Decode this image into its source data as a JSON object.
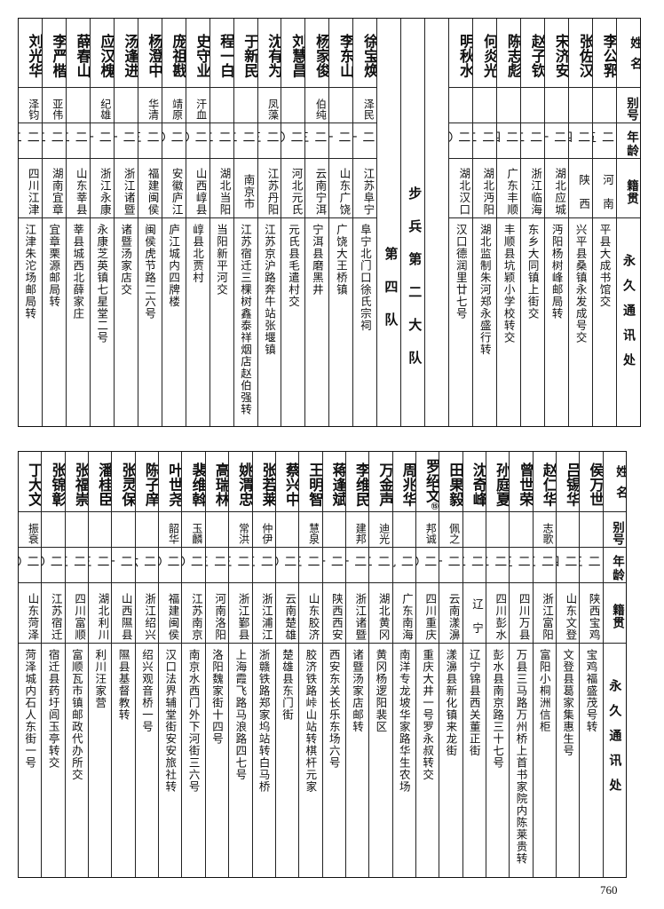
{
  "header": {
    "name": "姓名",
    "alias": "别号",
    "age": "年龄",
    "origin": "籍贯",
    "address": "永久通讯处"
  },
  "top_before": [
    {
      "name": "李公郛",
      "alias": "",
      "age": "二五",
      "origin": "河　南",
      "address": "平县大成书馆交"
    },
    {
      "name": "张佐汉",
      "alias": "",
      "age": "二四",
      "origin": "陕　西",
      "address": "兴平县桑镇永发成号交"
    },
    {
      "name": "宋济安",
      "alias": "",
      "age": "二一",
      "origin": "湖北应城",
      "address": "沔阳杨树峰邮局转"
    },
    {
      "name": "赵子钦",
      "alias": "",
      "age": "二二",
      "origin": "浙江临海",
      "address": "东乡大同镇上街交"
    },
    {
      "name": "陈志彪",
      "alias": "",
      "age": "二四",
      "origin": "广东丰顺",
      "address": "丰顺县坑颖小学校转交"
    },
    {
      "name": "何炎光",
      "alias": "",
      "age": "二二",
      "origin": "湖北沔阳",
      "address": "湖北监制朱河郑永盛行转"
    },
    {
      "name": "明秋水",
      "alias": "",
      "age": "二〇",
      "origin": "湖北汉口",
      "address": "汉口德润里廿七号"
    }
  ],
  "section": {
    "battalion": "步兵第二大队",
    "company": "第四队"
  },
  "top_after": [
    {
      "name": "徐宝焕",
      "alias": "泽民",
      "age": "二一",
      "origin": "江苏阜宁",
      "address": "阜宁北门口徐氏宗祠"
    },
    {
      "name": "李东山",
      "alias": "",
      "age": "二一",
      "origin": "山东广饶",
      "address": "广饶大王桥镇"
    },
    {
      "name": "杨家俊",
      "alias": "伯纯",
      "age": "二三",
      "origin": "云南宁洱",
      "address": "宁洱县磨黑井"
    },
    {
      "name": "刘慧昌",
      "alias": "",
      "age": "二〇",
      "origin": "河北元氏",
      "address": "元氏县毛遣村交"
    },
    {
      "name": "沈有为",
      "alias": "凤藻",
      "age": "二三",
      "origin": "江苏丹阳",
      "address": "江苏京沪路奔牛站张堰镇"
    },
    {
      "name": "于新民",
      "alias": "",
      "age": "二二",
      "origin": "南京市",
      "address": "江苏宿迁三棵树鑫泰祥烟店赵伯强转"
    },
    {
      "name": "程一白",
      "alias": "",
      "age": "二二",
      "origin": "湖北当阳",
      "address": "当阳新平河交"
    },
    {
      "name": "史守业",
      "alias": "汗血",
      "age": "二〇",
      "origin": "山西崞县",
      "address": "崞县北贾村"
    },
    {
      "name": "庞祖戡",
      "alias": "靖原",
      "age": "二〇",
      "origin": "安徽庐江",
      "address": "庐江城内四牌楼"
    },
    {
      "name": "杨澄中",
      "alias": "华清",
      "age": "二三",
      "origin": "福建闽侯",
      "address": "闽侯虎节路二六号"
    },
    {
      "name": "汤逢进",
      "alias": "",
      "age": "二一",
      "origin": "浙江诸暨",
      "address": "诸暨汤家店交"
    },
    {
      "name": "应汉槐",
      "alias": "纪雄",
      "age": "二一",
      "origin": "浙江永康",
      "address": "永康芝英镇七星堂二号"
    },
    {
      "name": "薛春山",
      "alias": "",
      "age": "二二",
      "origin": "山东莘县",
      "address": "莘县城西北薛家庄"
    },
    {
      "name": "李严楷",
      "alias": "亚伟",
      "age": "二二",
      "origin": "湖南宜章",
      "address": "宜章栗源邮局转"
    },
    {
      "name": "刘光华",
      "alias": "泽钧",
      "age": "二二",
      "origin": "四川江津",
      "address": "江津朱沱场邮局转"
    }
  ],
  "bottom": [
    {
      "name": "侯万世",
      "alias": "",
      "age": "二三",
      "origin": "陕西宝鸡",
      "address": "宝鸡福盛茂号转"
    },
    {
      "name": "吕锡华",
      "alias": "",
      "age": "二四",
      "origin": "山东文登",
      "address": "文登县葛家集惠生号"
    },
    {
      "name": "赵仁华",
      "alias": "志歌",
      "age": "二三",
      "origin": "浙江富阳",
      "address": "富阳小桐洲信柜"
    },
    {
      "name": "曾世荣",
      "alias": "",
      "age": "二五",
      "origin": "四川万县",
      "address": "万县三马路万州桥上首书家院内陈莱贵转"
    },
    {
      "name": "孙庭夏",
      "alias": "",
      "age": "二二",
      "origin": "四川彭水",
      "address": "彭水县南京路三十七号"
    },
    {
      "name": "沈奇峰",
      "alias": "",
      "age": "二二",
      "origin": "辽　宁",
      "address": "辽宁锦县西关董正街"
    },
    {
      "name": "田果毅",
      "alias": "佩之",
      "age": "二一",
      "origin": "云南漾濞",
      "address": "漾濞县新化镇来龙街"
    },
    {
      "name": "罗绍文",
      "note": "⑮",
      "alias": "邦诚",
      "age": "二〇",
      "origin": "四川重庆",
      "address": "重庆大井一号罗永叔转交"
    },
    {
      "name": "周兆华",
      "alias": "",
      "age": "二九",
      "origin": "广东南海",
      "address": "南洋专龙坡华家路华生农场"
    },
    {
      "name": "万金声",
      "alias": "迪光",
      "age": "二二",
      "origin": "湖北黄冈",
      "address": "黄冈杨逻阳裴区"
    },
    {
      "name": "李维民",
      "alias": "建邦",
      "age": "二一",
      "origin": "浙江诸暨",
      "address": "诸暨汤家店邮转"
    },
    {
      "name": "蒋逢斌",
      "alias": "",
      "age": "二一",
      "origin": "陕西西安",
      "address": "西安东关长乐东场六号"
    },
    {
      "name": "王明智",
      "alias": "慧泉",
      "age": "二三",
      "origin": "山东胶济",
      "address": "胶济铁路峠山站转棋杆元家"
    },
    {
      "name": "蔡兴中",
      "alias": "",
      "age": "二〇",
      "origin": "云南楚雄",
      "address": "楚雄县东门街"
    },
    {
      "name": "张若莱",
      "alias": "仲伊",
      "age": "二三",
      "origin": "浙江浦江",
      "address": "浙赣铁路郑家坞站转白马桥"
    },
    {
      "name": "姚渭忠",
      "alias": "常洪",
      "age": "二三",
      "origin": "浙江鄞县",
      "address": "上海霞飞路马浪路四七号"
    },
    {
      "name": "高瑞林",
      "alias": "",
      "age": "二三",
      "origin": "河南洛阳",
      "address": "洛阳魏家街十四号"
    },
    {
      "name": "裴维斡",
      "alias": "玉麟",
      "age": "二〇",
      "origin": "江苏南京",
      "address": "南京水西门外下河街三六号"
    },
    {
      "name": "叶世尧",
      "alias": "韶华",
      "age": "二〇",
      "origin": "福建闽侯",
      "address": "汉口法界辅堂街安安旅社转"
    },
    {
      "name": "陈子庠",
      "alias": "",
      "age": "二六",
      "origin": "浙江绍兴",
      "address": "绍兴观音桥一号"
    },
    {
      "name": "张灵保",
      "alias": "",
      "age": "二一",
      "origin": "山西隰县",
      "address": "隰县基督教转"
    },
    {
      "name": "潘桂臣",
      "alias": "",
      "age": "二三",
      "origin": "湖北利川",
      "address": "利川汪家营"
    },
    {
      "name": "张福崇",
      "alias": "",
      "age": "二三",
      "origin": "四川富顺",
      "address": "富顺瓦市镇邮政代办所交"
    },
    {
      "name": "张锦彰",
      "alias": "",
      "age": "二〇",
      "origin": "江苏宿迁",
      "address": "宿迁县药圩闾玉亭转交"
    },
    {
      "name": "丁大文",
      "alias": "振衰",
      "age": "二〇",
      "origin": "山东菏泽",
      "address": "菏泽城内石人东街一号"
    }
  ],
  "page_number": "760"
}
